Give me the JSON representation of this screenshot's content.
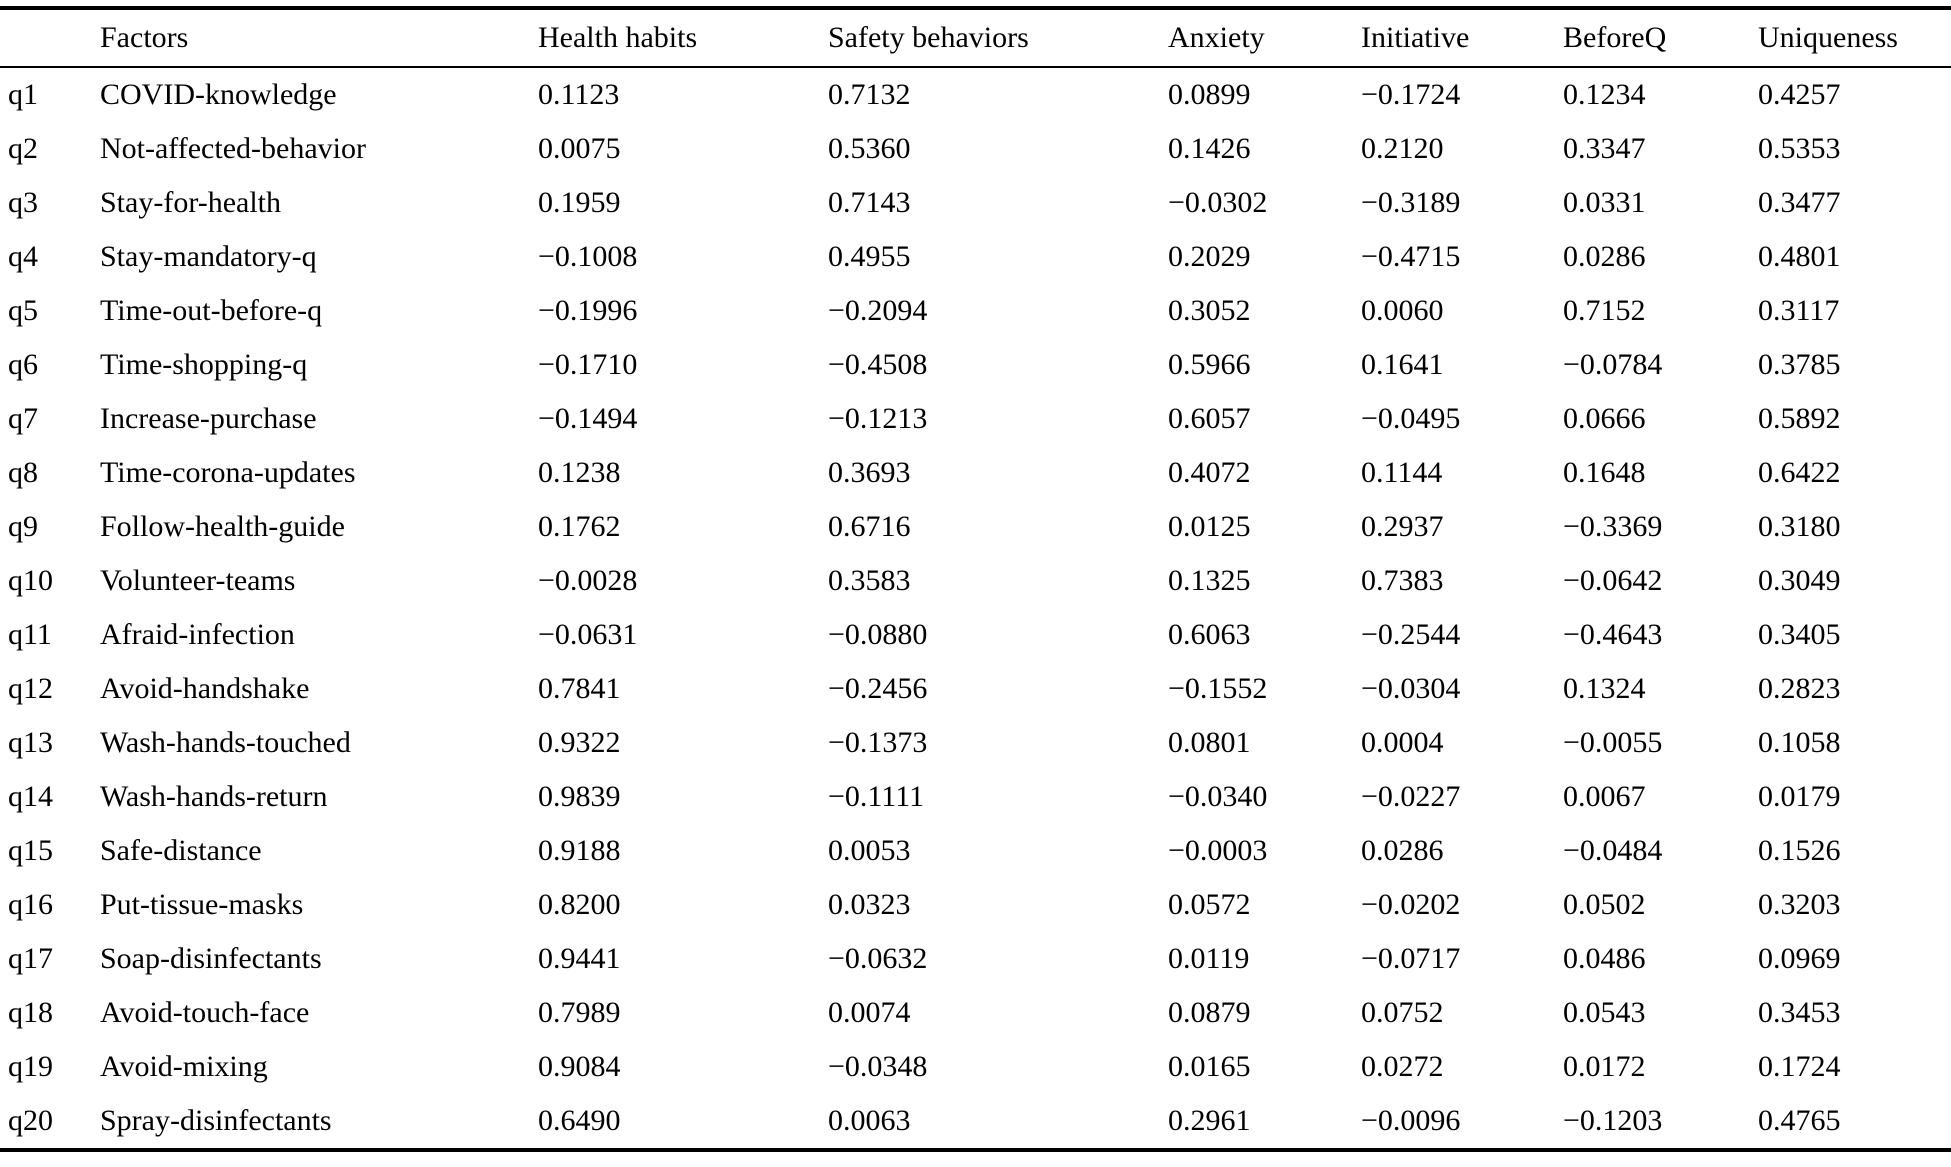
{
  "table": {
    "columns": [
      "",
      "Factors",
      "Health habits",
      "Safety behaviors",
      "Anxiety",
      "Initiative",
      "BeforeQ",
      "Uniqueness"
    ],
    "rows": [
      {
        "id": "q1",
        "factor": "COVID-knowledge",
        "values": [
          "0.1123",
          "0.7132",
          "0.0899",
          "−0.1724",
          "0.1234",
          "0.4257"
        ]
      },
      {
        "id": "q2",
        "factor": "Not-affected-behavior",
        "values": [
          "0.0075",
          "0.5360",
          "0.1426",
          "0.2120",
          "0.3347",
          "0.5353"
        ]
      },
      {
        "id": "q3",
        "factor": "Stay-for-health",
        "values": [
          "0.1959",
          "0.7143",
          "−0.0302",
          "−0.3189",
          "0.0331",
          "0.3477"
        ]
      },
      {
        "id": "q4",
        "factor": "Stay-mandatory-q",
        "values": [
          "−0.1008",
          "0.4955",
          "0.2029",
          "−0.4715",
          "0.0286",
          "0.4801"
        ]
      },
      {
        "id": "q5",
        "factor": "Time-out-before-q",
        "values": [
          "−0.1996",
          "−0.2094",
          "0.3052",
          "0.0060",
          "0.7152",
          "0.3117"
        ]
      },
      {
        "id": "q6",
        "factor": "Time-shopping-q",
        "values": [
          "−0.1710",
          "−0.4508",
          "0.5966",
          "0.1641",
          "−0.0784",
          "0.3785"
        ]
      },
      {
        "id": "q7",
        "factor": "Increase-purchase",
        "values": [
          "−0.1494",
          "−0.1213",
          "0.6057",
          "−0.0495",
          "0.0666",
          "0.5892"
        ]
      },
      {
        "id": "q8",
        "factor": "Time-corona-updates",
        "values": [
          "0.1238",
          "0.3693",
          "0.4072",
          "0.1144",
          "0.1648",
          "0.6422"
        ]
      },
      {
        "id": "q9",
        "factor": "Follow-health-guide",
        "values": [
          "0.1762",
          "0.6716",
          "0.0125",
          "0.2937",
          "−0.3369",
          "0.3180"
        ]
      },
      {
        "id": "q10",
        "factor": "Volunteer-teams",
        "values": [
          "−0.0028",
          "0.3583",
          "0.1325",
          "0.7383",
          "−0.0642",
          "0.3049"
        ]
      },
      {
        "id": "q11",
        "factor": "Afraid-infection",
        "values": [
          "−0.0631",
          "−0.0880",
          "0.6063",
          "−0.2544",
          "−0.4643",
          "0.3405"
        ]
      },
      {
        "id": "q12",
        "factor": "Avoid-handshake",
        "values": [
          "0.7841",
          "−0.2456",
          "−0.1552",
          "−0.0304",
          "0.1324",
          "0.2823"
        ]
      },
      {
        "id": "q13",
        "factor": "Wash-hands-touched",
        "values": [
          "0.9322",
          "−0.1373",
          "0.0801",
          "0.0004",
          "−0.0055",
          "0.1058"
        ]
      },
      {
        "id": "q14",
        "factor": "Wash-hands-return",
        "values": [
          "0.9839",
          "−0.1111",
          "−0.0340",
          "−0.0227",
          "0.0067",
          "0.0179"
        ]
      },
      {
        "id": "q15",
        "factor": "Safe-distance",
        "values": [
          "0.9188",
          "0.0053",
          "−0.0003",
          "0.0286",
          "−0.0484",
          "0.1526"
        ]
      },
      {
        "id": "q16",
        "factor": "Put-tissue-masks",
        "values": [
          "0.8200",
          "0.0323",
          "0.0572",
          "−0.0202",
          "0.0502",
          "0.3203"
        ]
      },
      {
        "id": "q17",
        "factor": "Soap-disinfectants",
        "values": [
          "0.9441",
          "−0.0632",
          "0.0119",
          "−0.0717",
          "0.0486",
          "0.0969"
        ]
      },
      {
        "id": "q18",
        "factor": "Avoid-touch-face",
        "values": [
          "0.7989",
          "0.0074",
          "0.0879",
          "0.0752",
          "0.0543",
          "0.3453"
        ]
      },
      {
        "id": "q19",
        "factor": "Avoid-mixing",
        "values": [
          "0.9084",
          "−0.0348",
          "0.0165",
          "0.0272",
          "0.0172",
          "0.1724"
        ]
      },
      {
        "id": "q20",
        "factor": "Spray-disinfectants",
        "values": [
          "0.6490",
          "0.0063",
          "0.2961",
          "−0.0096",
          "−0.1203",
          "0.4765"
        ]
      }
    ]
  }
}
